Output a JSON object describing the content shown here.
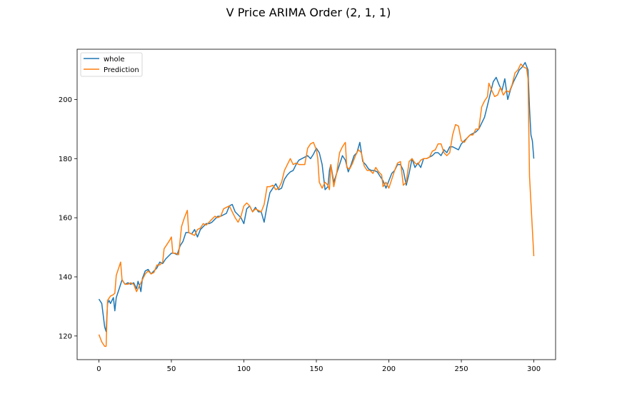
{
  "chart_data": {
    "type": "line",
    "title": "V Price ARIMA Order (2, 1, 1)",
    "xlabel": "",
    "ylabel": "",
    "xlim": [
      -15,
      315
    ],
    "ylim": [
      112,
      217
    ],
    "xticks": [
      0,
      50,
      100,
      150,
      200,
      250,
      300
    ],
    "yticks": [
      120,
      140,
      160,
      180,
      200
    ],
    "legend": "top-left",
    "grid": false,
    "series": [
      {
        "name": "whole",
        "color": "#1f77b4",
        "points": [
          [
            0,
            132.5
          ],
          [
            2,
            131
          ],
          [
            4,
            123
          ],
          [
            5,
            121.5
          ],
          [
            6,
            131
          ],
          [
            7,
            132
          ],
          [
            8,
            131
          ],
          [
            10,
            133
          ],
          [
            11,
            128.5
          ],
          [
            12,
            133
          ],
          [
            14,
            136
          ],
          [
            16,
            139
          ],
          [
            18,
            137.5
          ],
          [
            20,
            138
          ],
          [
            22,
            137.5
          ],
          [
            24,
            138
          ],
          [
            26,
            136
          ],
          [
            27,
            138.5
          ],
          [
            28,
            137
          ],
          [
            29,
            135
          ],
          [
            30,
            139.5
          ],
          [
            32,
            142
          ],
          [
            34,
            142.5
          ],
          [
            36,
            141
          ],
          [
            38,
            142
          ],
          [
            40,
            143
          ],
          [
            42,
            145
          ],
          [
            44,
            144.5
          ],
          [
            46,
            146
          ],
          [
            48,
            147
          ],
          [
            50,
            148
          ],
          [
            52,
            148
          ],
          [
            54,
            147.5
          ],
          [
            56,
            150.5
          ],
          [
            58,
            152
          ],
          [
            60,
            155
          ],
          [
            62,
            155
          ],
          [
            64,
            154.5
          ],
          [
            66,
            156
          ],
          [
            68,
            153.5
          ],
          [
            70,
            156
          ],
          [
            72,
            157
          ],
          [
            74,
            158
          ],
          [
            76,
            158
          ],
          [
            78,
            158.5
          ],
          [
            80,
            159.5
          ],
          [
            82,
            160.5
          ],
          [
            84,
            160.5
          ],
          [
            86,
            161
          ],
          [
            88,
            161.5
          ],
          [
            90,
            164
          ],
          [
            92,
            164.5
          ],
          [
            94,
            162
          ],
          [
            96,
            161
          ],
          [
            98,
            160
          ],
          [
            100,
            158
          ],
          [
            102,
            163
          ],
          [
            104,
            164
          ],
          [
            106,
            162
          ],
          [
            108,
            163.5
          ],
          [
            110,
            162
          ],
          [
            112,
            162
          ],
          [
            114,
            158.5
          ],
          [
            116,
            164
          ],
          [
            118,
            168.5
          ],
          [
            120,
            170
          ],
          [
            122,
            171.5
          ],
          [
            124,
            169.5
          ],
          [
            126,
            170
          ],
          [
            128,
            173
          ],
          [
            130,
            174.5
          ],
          [
            132,
            175.5
          ],
          [
            134,
            176
          ],
          [
            136,
            178
          ],
          [
            138,
            179.5
          ],
          [
            140,
            180
          ],
          [
            142,
            180.5
          ],
          [
            144,
            181
          ],
          [
            146,
            180
          ],
          [
            148,
            181.5
          ],
          [
            150,
            183.5
          ],
          [
            152,
            182
          ],
          [
            154,
            178
          ],
          [
            156,
            169.5
          ],
          [
            158,
            170.5
          ],
          [
            159,
            176
          ],
          [
            160,
            178
          ],
          [
            162,
            172
          ],
          [
            164,
            175
          ],
          [
            166,
            178
          ],
          [
            168,
            181
          ],
          [
            170,
            179.5
          ],
          [
            172,
            175.5
          ],
          [
            174,
            178
          ],
          [
            176,
            181
          ],
          [
            178,
            182
          ],
          [
            180,
            185.5
          ],
          [
            182,
            179
          ],
          [
            184,
            178
          ],
          [
            186,
            176.5
          ],
          [
            188,
            176
          ],
          [
            190,
            176
          ],
          [
            192,
            175.5
          ],
          [
            194,
            174
          ],
          [
            196,
            172.5
          ],
          [
            198,
            170
          ],
          [
            200,
            172.5
          ],
          [
            202,
            175
          ],
          [
            204,
            176
          ],
          [
            206,
            178
          ],
          [
            208,
            178
          ],
          [
            210,
            176
          ],
          [
            212,
            171
          ],
          [
            214,
            175
          ],
          [
            216,
            180
          ],
          [
            218,
            177
          ],
          [
            220,
            178.5
          ],
          [
            222,
            177
          ],
          [
            224,
            180
          ],
          [
            226,
            180
          ],
          [
            228,
            180.5
          ],
          [
            230,
            181
          ],
          [
            232,
            182
          ],
          [
            234,
            182
          ],
          [
            236,
            181
          ],
          [
            238,
            183
          ],
          [
            240,
            182
          ],
          [
            242,
            184
          ],
          [
            244,
            184
          ],
          [
            246,
            183.5
          ],
          [
            248,
            183
          ],
          [
            250,
            185
          ],
          [
            252,
            186
          ],
          [
            254,
            187
          ],
          [
            256,
            188
          ],
          [
            258,
            188.5
          ],
          [
            260,
            189
          ],
          [
            262,
            190
          ],
          [
            264,
            192
          ],
          [
            266,
            194
          ],
          [
            268,
            198
          ],
          [
            270,
            202
          ],
          [
            272,
            206
          ],
          [
            274,
            207.5
          ],
          [
            276,
            205
          ],
          [
            278,
            203
          ],
          [
            280,
            207
          ],
          [
            282,
            200
          ],
          [
            284,
            203.5
          ],
          [
            286,
            206
          ],
          [
            288,
            208
          ],
          [
            290,
            210
          ],
          [
            292,
            211
          ],
          [
            294,
            212.5
          ],
          [
            296,
            210
          ],
          [
            297,
            197
          ],
          [
            298,
            188
          ],
          [
            299,
            186
          ],
          [
            300,
            180
          ]
        ]
      },
      {
        "name": "Prediction",
        "color": "#ff7f0e",
        "points": [
          [
            0,
            120.5
          ],
          [
            2,
            118
          ],
          [
            4,
            116.5
          ],
          [
            5,
            116.5
          ],
          [
            6,
            132
          ],
          [
            8,
            133.5
          ],
          [
            10,
            134
          ],
          [
            11,
            134.5
          ],
          [
            12,
            140.5
          ],
          [
            14,
            143.5
          ],
          [
            15,
            145
          ],
          [
            16,
            139
          ],
          [
            18,
            137.5
          ],
          [
            20,
            137.5
          ],
          [
            22,
            138
          ],
          [
            24,
            137.5
          ],
          [
            26,
            135
          ],
          [
            28,
            137
          ],
          [
            30,
            139
          ],
          [
            32,
            141
          ],
          [
            34,
            142
          ],
          [
            36,
            141
          ],
          [
            38,
            141.5
          ],
          [
            40,
            144
          ],
          [
            42,
            144
          ],
          [
            44,
            145
          ],
          [
            45,
            149.5
          ],
          [
            47,
            151
          ],
          [
            49,
            152.5
          ],
          [
            50,
            153.5
          ],
          [
            51,
            148
          ],
          [
            53,
            148
          ],
          [
            55,
            147.5
          ],
          [
            57,
            157
          ],
          [
            59,
            160
          ],
          [
            61,
            162.5
          ],
          [
            62,
            155
          ],
          [
            64,
            154.5
          ],
          [
            66,
            154
          ],
          [
            68,
            156
          ],
          [
            70,
            156.5
          ],
          [
            72,
            158
          ],
          [
            74,
            157.5
          ],
          [
            76,
            158.5
          ],
          [
            78,
            159.5
          ],
          [
            80,
            160.5
          ],
          [
            82,
            160
          ],
          [
            84,
            160.5
          ],
          [
            86,
            163
          ],
          [
            88,
            163.5
          ],
          [
            90,
            164
          ],
          [
            92,
            162
          ],
          [
            94,
            160
          ],
          [
            96,
            158.5
          ],
          [
            98,
            160.5
          ],
          [
            100,
            164
          ],
          [
            102,
            165
          ],
          [
            104,
            164
          ],
          [
            106,
            162
          ],
          [
            108,
            163
          ],
          [
            110,
            162.5
          ],
          [
            112,
            162
          ],
          [
            114,
            164.5
          ],
          [
            116,
            170.5
          ],
          [
            118,
            170.5
          ],
          [
            120,
            171
          ],
          [
            122,
            169.5
          ],
          [
            124,
            170
          ],
          [
            126,
            172
          ],
          [
            128,
            176
          ],
          [
            130,
            178
          ],
          [
            132,
            180
          ],
          [
            134,
            178
          ],
          [
            136,
            178.5
          ],
          [
            138,
            178
          ],
          [
            140,
            178
          ],
          [
            142,
            178
          ],
          [
            144,
            183.5
          ],
          [
            146,
            185
          ],
          [
            148,
            185.5
          ],
          [
            150,
            183
          ],
          [
            151,
            180
          ],
          [
            152,
            172
          ],
          [
            154,
            170
          ],
          [
            156,
            172
          ],
          [
            158,
            171
          ],
          [
            159,
            169.5
          ],
          [
            160,
            178
          ],
          [
            162,
            170.5
          ],
          [
            164,
            175
          ],
          [
            166,
            182
          ],
          [
            168,
            184
          ],
          [
            170,
            185.5
          ],
          [
            171,
            177
          ],
          [
            173,
            176.5
          ],
          [
            175,
            178.5
          ],
          [
            177,
            181
          ],
          [
            179,
            183
          ],
          [
            181,
            182
          ],
          [
            183,
            177.5
          ],
          [
            185,
            176
          ],
          [
            187,
            176
          ],
          [
            189,
            175
          ],
          [
            191,
            177
          ],
          [
            193,
            175.5
          ],
          [
            195,
            174.5
          ],
          [
            196,
            170.5
          ],
          [
            198,
            172
          ],
          [
            200,
            170
          ],
          [
            202,
            173
          ],
          [
            204,
            176
          ],
          [
            206,
            178.5
          ],
          [
            208,
            179
          ],
          [
            210,
            171
          ],
          [
            212,
            172
          ],
          [
            214,
            179
          ],
          [
            216,
            180
          ],
          [
            218,
            178.5
          ],
          [
            220,
            178
          ],
          [
            222,
            179.5
          ],
          [
            224,
            180
          ],
          [
            226,
            180
          ],
          [
            228,
            180.5
          ],
          [
            230,
            182.5
          ],
          [
            232,
            183
          ],
          [
            234,
            185
          ],
          [
            236,
            185
          ],
          [
            238,
            182
          ],
          [
            240,
            181
          ],
          [
            242,
            182
          ],
          [
            244,
            188
          ],
          [
            246,
            191.5
          ],
          [
            248,
            191
          ],
          [
            250,
            186
          ],
          [
            252,
            185.5
          ],
          [
            254,
            187
          ],
          [
            256,
            188
          ],
          [
            258,
            188
          ],
          [
            260,
            190
          ],
          [
            262,
            190
          ],
          [
            264,
            197.5
          ],
          [
            266,
            199.5
          ],
          [
            268,
            201
          ],
          [
            269,
            205.5
          ],
          [
            271,
            203
          ],
          [
            273,
            201
          ],
          [
            275,
            201.5
          ],
          [
            277,
            204
          ],
          [
            279,
            201.5
          ],
          [
            281,
            203
          ],
          [
            283,
            202.5
          ],
          [
            285,
            205
          ],
          [
            287,
            209
          ],
          [
            289,
            210
          ],
          [
            291,
            212
          ],
          [
            293,
            211
          ],
          [
            295,
            210.5
          ],
          [
            296,
            207
          ],
          [
            297,
            174
          ],
          [
            298,
            165
          ],
          [
            299,
            156
          ],
          [
            300,
            147
          ]
        ]
      }
    ]
  }
}
